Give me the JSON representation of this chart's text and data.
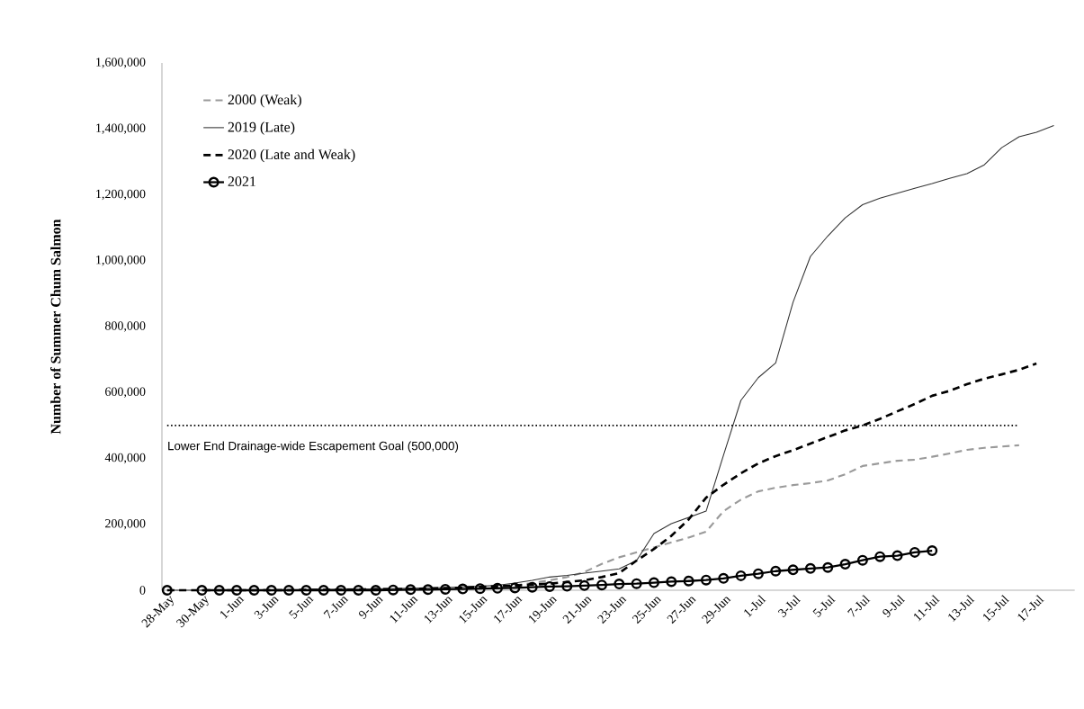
{
  "chart_data": {
    "type": "line",
    "ylabel": "Number of Summer Chum Salmon",
    "categories": [
      "28-May",
      null,
      "30-May",
      null,
      "1-Jun",
      null,
      "3-Jun",
      null,
      "5-Jun",
      null,
      "7-Jun",
      null,
      "9-Jun",
      null,
      "11-Jun",
      null,
      "13-Jun",
      null,
      "15-Jun",
      null,
      "17-Jun",
      null,
      "19-Jun",
      null,
      "21-Jun",
      null,
      "23-Jun",
      null,
      "25-Jun",
      null,
      "27-Jun",
      null,
      "29-Jun",
      null,
      "1-Jul",
      null,
      "3-Jul",
      null,
      "5-Jul",
      null,
      "7-Jul",
      null,
      "9-Jul",
      null,
      "11-Jul",
      null,
      "13-Jul",
      null,
      "15-Jul",
      null,
      "17-Jul",
      null
    ],
    "series": [
      {
        "name": "2000 (Weak)",
        "color": "#9a9a9a",
        "line_style": "dashed",
        "marker": "none",
        "values": [
          0,
          0,
          0,
          0,
          0,
          0,
          1000,
          1000,
          2000,
          2000,
          3000,
          3000,
          4000,
          4000,
          5000,
          6000,
          7000,
          8000,
          10000,
          12000,
          15000,
          22000,
          30000,
          40000,
          55000,
          80000,
          100000,
          115000,
          130000,
          145000,
          160000,
          178000,
          240000,
          275000,
          300000,
          311000,
          319000,
          325000,
          333000,
          352000,
          377000,
          385000,
          393000,
          396000,
          405000,
          415000,
          426000,
          432000,
          436000,
          440000,
          null,
          null
        ]
      },
      {
        "name": "2019 (Late)",
        "color": "#333333",
        "line_style": "solid",
        "marker": "none",
        "values": [
          0,
          0,
          0,
          0,
          0,
          0,
          1000,
          1000,
          2000,
          2000,
          3000,
          3000,
          4000,
          5000,
          6000,
          7000,
          8000,
          10000,
          12000,
          15000,
          22000,
          30000,
          40000,
          45000,
          52000,
          58000,
          65000,
          90000,
          172000,
          202000,
          221000,
          240000,
          410000,
          576000,
          645000,
          690000,
          874000,
          1013000,
          1075000,
          1130000,
          1170000,
          1190000,
          1205000,
          1220000,
          1234000,
          1250000,
          1264000,
          1291000,
          1343000,
          1376000,
          1390000,
          1410000
        ]
      },
      {
        "name": "2020 (Late and Weak)",
        "color": "#000000",
        "line_style": "dashed",
        "marker": "none",
        "values": [
          0,
          0,
          0,
          0,
          0,
          0,
          0,
          0,
          1000,
          1000,
          2000,
          2000,
          3000,
          3000,
          4000,
          5000,
          6000,
          8000,
          10000,
          12000,
          14000,
          17000,
          20000,
          25000,
          30000,
          40000,
          52000,
          90000,
          125000,
          165000,
          215000,
          281000,
          320000,
          355000,
          385000,
          407000,
          425000,
          445000,
          465000,
          485000,
          500000,
          520000,
          543000,
          565000,
          590000,
          605000,
          625000,
          642000,
          655000,
          669000,
          688000,
          null
        ]
      },
      {
        "name": "2021",
        "color": "#000000",
        "line_style": "solid",
        "marker": "circle",
        "values": [
          0,
          null,
          0,
          0,
          0,
          0,
          0,
          0,
          0,
          0,
          0,
          0,
          0,
          1000,
          2000,
          2000,
          3000,
          4000,
          5000,
          6000,
          7000,
          9000,
          11000,
          12000,
          14000,
          16000,
          19000,
          20000,
          23000,
          26000,
          28000,
          31000,
          36000,
          44000,
          50000,
          58000,
          62000,
          66000,
          69000,
          79000,
          91000,
          102000,
          105000,
          115000,
          120000,
          null,
          null,
          null,
          null,
          null,
          null,
          null
        ]
      }
    ],
    "ylim": [
      0,
      1600000
    ],
    "yticks": [
      {
        "value": 0,
        "label": "0"
      },
      {
        "value": 200000,
        "label": "200,000"
      },
      {
        "value": 400000,
        "label": "400,000"
      },
      {
        "value": 600000,
        "label": "600,000"
      },
      {
        "value": 800000,
        "label": "800,000"
      },
      {
        "value": 1000000,
        "label": "1,000,000"
      },
      {
        "value": 1200000,
        "label": "1,200,000"
      },
      {
        "value": 1400000,
        "label": "1,400,000"
      },
      {
        "value": 1600000,
        "label": "1,600,000"
      }
    ],
    "ref_lines": [
      {
        "axis": "y",
        "value": 500000,
        "label": "Lower End Drainage-wide Escapement Goal (500,000)",
        "line_style": "dotted",
        "color": "#000000"
      }
    ],
    "legend": "top left",
    "grid": false
  }
}
